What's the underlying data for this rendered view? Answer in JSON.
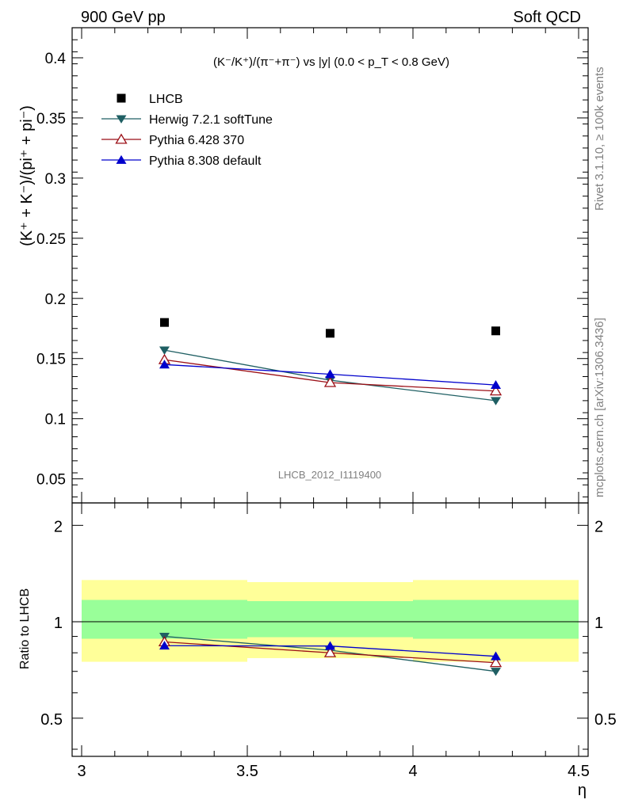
{
  "header": {
    "left": "900 GeV pp",
    "right": "Soft QCD"
  },
  "side_text": {
    "rivet": "Rivet 3.1.10, ≥ 100k events",
    "mcplots": "mcplots.cern.ch [arXiv:1306.3436]"
  },
  "colors": {
    "data": "#000000",
    "herwig": "#1f5f63",
    "pythia6": "#9b0f16",
    "pythia8": "#0000cc",
    "band_inner": "#99ff99",
    "band_outer": "#ffff99"
  },
  "chart_data": [
    {
      "type": "scatter",
      "title": "(K⁻/K⁺)/(π⁻+π⁻) vs |y| (0.0 < p_T < 0.8 GeV)",
      "ylabel": "(K⁺ + K⁻)/(pi⁺ + pi⁻)",
      "xlabel": "",
      "watermark": "LHCB_2012_I1119400",
      "xlim": [
        3,
        4.5
      ],
      "ylim": [
        0.03,
        0.425
      ],
      "yticks": [
        "0.05",
        "0.1",
        "0.15",
        "0.2",
        "0.25",
        "0.3",
        "0.35",
        "0.4"
      ],
      "legend_position": "top-left",
      "series": [
        {
          "name": "LHCB",
          "key": "data",
          "marker": "square",
          "x": [
            3.25,
            3.75,
            4.25
          ],
          "values": [
            0.18,
            0.171,
            0.173
          ]
        },
        {
          "name": "Herwig 7.2.1 softTune",
          "key": "herwig",
          "marker": "triangle-down",
          "x": [
            3.25,
            3.75,
            4.25
          ],
          "values": [
            0.157,
            0.132,
            0.115
          ]
        },
        {
          "name": "Pythia 6.428 370",
          "key": "pythia6",
          "marker": "triangle-open",
          "x": [
            3.25,
            3.75,
            4.25
          ],
          "values": [
            0.149,
            0.13,
            0.123
          ]
        },
        {
          "name": "Pythia 8.308 default",
          "key": "pythia8",
          "marker": "triangle-up",
          "x": [
            3.25,
            3.75,
            4.25
          ],
          "values": [
            0.145,
            0.137,
            0.128
          ]
        }
      ]
    },
    {
      "type": "line",
      "ylabel": "Ratio to LHCB",
      "xlabel": "η",
      "xlim": [
        3,
        4.5
      ],
      "ylim": [
        0.38,
        2.35
      ],
      "xticks": [
        "3",
        "3.5",
        "4",
        "4.5"
      ],
      "yticks": [
        "0.5",
        "1",
        "2"
      ],
      "bands": {
        "x_edges": [
          3.0,
          3.5,
          4.0,
          4.5
        ],
        "inner_lo": [
          0.885,
          0.895,
          0.885
        ],
        "inner_hi": [
          1.17,
          1.16,
          1.17
        ],
        "outer_lo": [
          0.75,
          0.77,
          0.75
        ],
        "outer_hi": [
          1.35,
          1.33,
          1.35
        ]
      },
      "series": [
        {
          "name": "Herwig 7.2.1 softTune",
          "key": "herwig",
          "marker": "triangle-down",
          "x": [
            3.25,
            3.75,
            4.25
          ],
          "values": [
            0.9,
            0.815,
            0.7
          ]
        },
        {
          "name": "Pythia 6.428 370",
          "key": "pythia6",
          "marker": "triangle-open",
          "x": [
            3.25,
            3.75,
            4.25
          ],
          "values": [
            0.865,
            0.8,
            0.745
          ]
        },
        {
          "name": "Pythia 8.308 default",
          "key": "pythia8",
          "marker": "triangle-up",
          "x": [
            3.25,
            3.75,
            4.25
          ],
          "values": [
            0.842,
            0.84,
            0.78
          ]
        }
      ]
    }
  ]
}
